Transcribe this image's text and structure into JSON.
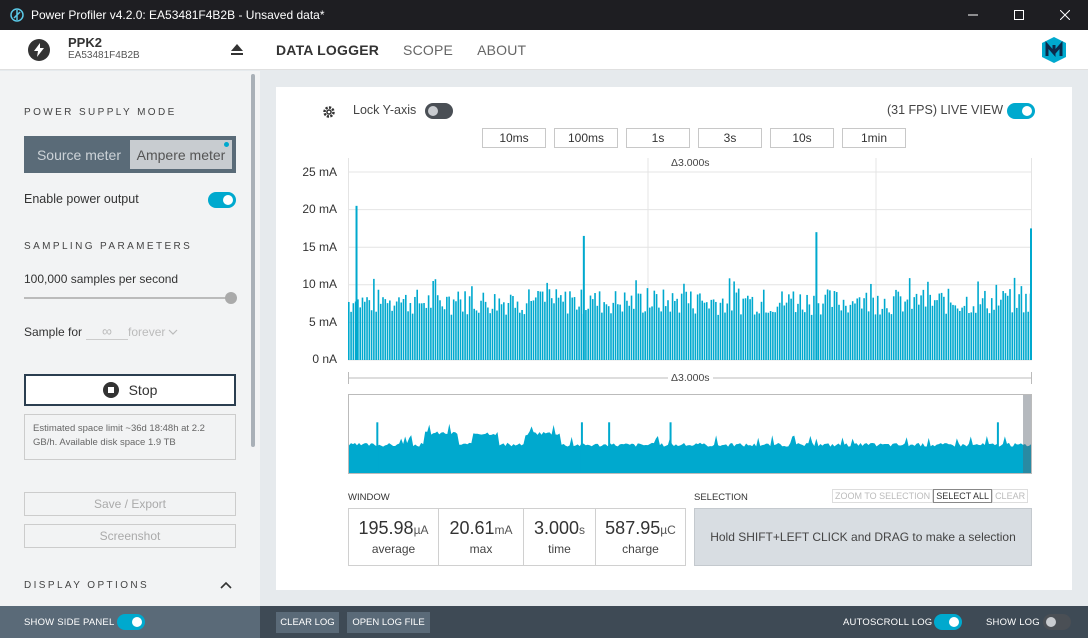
{
  "window": {
    "title": "Power Profiler v4.2.0: EA53481F4B2B - Unsaved data*",
    "icons": [
      "app-icon",
      "minimize-icon",
      "maximize-icon",
      "close-icon"
    ]
  },
  "header": {
    "device_name": "PPK2",
    "device_serial": "EA53481F4B2B",
    "tabs": [
      {
        "label": "DATA LOGGER",
        "active": true
      },
      {
        "label": "SCOPE",
        "active": false
      },
      {
        "label": "ABOUT",
        "active": false
      }
    ]
  },
  "sidebar": {
    "power_supply_title": "POWER SUPPLY MODE",
    "modes": [
      "Source meter",
      "Ampere meter"
    ],
    "active_mode": "Ampere meter",
    "enable_power_label": "Enable power output",
    "enable_power_on": true,
    "sampling_title": "SAMPLING PARAMETERS",
    "sample_rate_label": "100,000 samples per second",
    "sample_rate_level": 1.0,
    "sample_for_label": "Sample for",
    "sample_for_value": "∞",
    "sample_for_unit": "forever",
    "stop_label": "Stop",
    "space_info": "Estimated space limit ~36d 18:48h at 2.2 GB/h. Available disk space 1.9 TB",
    "save_label": "Save / Export",
    "screenshot_label": "Screenshot",
    "display_options_title": "DISPLAY OPTIONS"
  },
  "chart_controls": {
    "lock_label": "Lock Y-axis",
    "lock_on": false,
    "live_label": "(31 FPS) LIVE VIEW",
    "live_on": true,
    "ranges": [
      "10ms",
      "100ms",
      "1s",
      "3s",
      "10s",
      "1min"
    ],
    "window_delta": "Δ3.000s",
    "overview_delta": "Δ3.000s"
  },
  "chart_data": {
    "type": "bar",
    "xlabel": "",
    "ylabel": "",
    "y_ticks": [
      "25 mA",
      "20 mA",
      "15 mA",
      "10 mA",
      "5 mA",
      "0 nA"
    ],
    "ylim": [
      0,
      25
    ],
    "x_range_seconds": 3.0,
    "grid": true,
    "color": "#00a9ce",
    "baseline_mA": 7.5,
    "peaks": [
      {
        "t": 0.033,
        "mA": 20.5
      },
      {
        "t": 1.03,
        "mA": 16.5
      },
      {
        "t": 2.05,
        "mA": 17.0
      },
      {
        "t": 3.0,
        "mA": 17.5
      }
    ],
    "overview_peaks": [
      0.04,
      0.34,
      0.38,
      0.47,
      0.95
    ],
    "stats": {
      "average": {
        "value": "195.98",
        "unit": "µA",
        "label": "average"
      },
      "max": {
        "value": "20.61",
        "unit": "mA",
        "label": "max"
      },
      "time": {
        "value": "3.000",
        "unit": "s",
        "label": "time"
      },
      "charge": {
        "value": "587.95",
        "unit": "µC",
        "label": "charge"
      }
    }
  },
  "window_section": {
    "label": "WINDOW"
  },
  "selection": {
    "label": "SELECTION",
    "zoom_label": "ZOOM TO SELECTION",
    "select_all_label": "SELECT ALL",
    "clear_label": "CLEAR",
    "hint": "Hold SHIFT+LEFT CLICK and DRAG to make a selection"
  },
  "bottom": {
    "show_side_panel_label": "SHOW SIDE PANEL",
    "show_side_panel_on": true,
    "clear_log_label": "CLEAR LOG",
    "open_log_label": "OPEN LOG FILE",
    "autoscroll_label": "AUTOSCROLL LOG",
    "autoscroll_on": true,
    "show_log_label": "SHOW LOG",
    "show_log_on": false
  }
}
